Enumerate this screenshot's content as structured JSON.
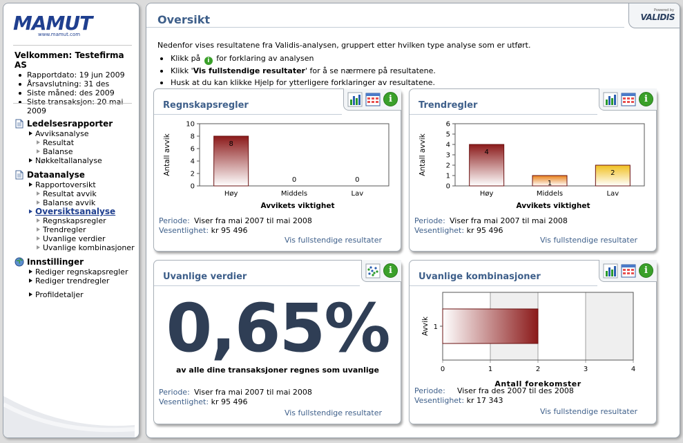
{
  "sidebar": {
    "logo": {
      "brand": "MAMUT",
      "sub": "www.mamut.com"
    },
    "welcome": {
      "title": "Velkommen: Testefirma AS",
      "items": [
        "Rapportdato: 19 jun 2009",
        "Årsavslutning: 31 des",
        "Siste måned: des 2009",
        "Siste transaksjon: 20 mai 2009"
      ]
    },
    "nav": {
      "reports": {
        "label": "Ledelsesrapporter",
        "items": [
          {
            "label": "Avviksanalyse"
          },
          {
            "label": "Resultat"
          },
          {
            "label": "Balanse"
          },
          {
            "label": "Nøkkeltallanalyse"
          }
        ]
      },
      "analysis": {
        "label": "Dataanalyse",
        "items": [
          {
            "label": "Rapportoversikt"
          },
          {
            "label": "Resultat avvik"
          },
          {
            "label": "Balanse avvik"
          },
          {
            "label": "Oversiktsanalyse"
          },
          {
            "label": "Regnskapsregler"
          },
          {
            "label": "Trendregler"
          },
          {
            "label": "Uvanlige verdier"
          },
          {
            "label": "Uvanlige kombinasjoner"
          }
        ]
      },
      "settings": {
        "label": "Innstillinger",
        "items": [
          {
            "label": "Rediger regnskapsregler"
          },
          {
            "label": "Rediger trendregler"
          },
          {
            "label": "Profildetaljer"
          }
        ]
      }
    }
  },
  "main": {
    "title": "Oversikt",
    "validis": {
      "powered": "Powered by",
      "brand": "VALIDIS"
    },
    "intro": "Nedenfor vises resultatene fra Validis-analysen, gruppert etter hvilken type analyse som er utført.",
    "bullets": {
      "b1_pre": "Klikk på",
      "b1_post": "for forklaring av analysen",
      "b2_pre": "Klikk '",
      "b2_bold": "Vis fullstendige resultater",
      "b2_post": "' for å se nærmere på resultatene.",
      "b3": "Husk at du kan klikke Hjelp for ytterligere forklaringer av resultatene."
    }
  },
  "panels": {
    "regnskap": {
      "title": "Regnskapsregler",
      "periode_label": "Periode:",
      "periode_value": "Viser fra mai 2007 til mai 2008",
      "vesentlighet_label": "Vesentlighet:",
      "vesentlighet_value": "kr 95 496",
      "link": "Vis fullstendige resultater"
    },
    "trend": {
      "title": "Trendregler",
      "periode_label": "Periode:",
      "periode_value": "Viser fra mai 2007 til mai 2008",
      "vesentlighet_label": "Vesentlighet:",
      "vesentlighet_value": "kr 95 496",
      "link": "Vis fullstendige resultater"
    },
    "uvanlige_verdier": {
      "title": "Uvanlige verdier",
      "value": "0,65%",
      "caption": "av alle dine transaksjoner regnes som uvanlige",
      "periode_label": "Periode:",
      "periode_value": "Viser fra mai 2007 til mai 2008",
      "vesentlighet_label": "Vesentlighet:",
      "vesentlighet_value": "kr 95 496",
      "link": "Vis fullstendige resultater"
    },
    "uvanlige_kombinasjoner": {
      "title": "Uvanlige kombinasjoner",
      "periode_label": "Periode:",
      "periode_value": "Viser fra des 2007 til des 2008",
      "vesentlighet_label": "Vesentlighet:",
      "vesentlighet_value": "kr 17 343",
      "link": "Vis fullstendige resultater"
    }
  },
  "chart_data": [
    {
      "type": "bar",
      "title": "",
      "categories": [
        "Høy",
        "Middels",
        "Lav"
      ],
      "values": [
        8,
        0,
        0
      ],
      "xlabel": "Avvikets viktighet",
      "ylabel": "Antall avvik",
      "ylim": [
        0,
        10
      ],
      "yticks": [
        0,
        2,
        4,
        6,
        8,
        10
      ],
      "colors": [
        "#8b1a1a",
        "#e8801a",
        "#f0c020"
      ],
      "data_labels": true,
      "grid": false
    },
    {
      "type": "bar",
      "title": "",
      "categories": [
        "Høy",
        "Middels",
        "Lav"
      ],
      "values": [
        4,
        1,
        2
      ],
      "xlabel": "Avvikets viktighet",
      "ylabel": "Antall avvik",
      "ylim": [
        0,
        6
      ],
      "yticks": [
        0,
        1,
        2,
        3,
        4,
        5,
        6
      ],
      "colors": [
        "#8b1a1a",
        "#e8801a",
        "#f0c020"
      ],
      "data_labels": true,
      "grid": false
    },
    {
      "type": "bar",
      "orientation": "horizontal",
      "title": "",
      "categories": [
        "1"
      ],
      "values": [
        2
      ],
      "xlabel": "Antall forekomster",
      "ylabel": "Avvik",
      "xlim": [
        0,
        4
      ],
      "xticks": [
        0,
        1,
        2,
        3,
        4
      ],
      "colors": [
        "#8b1a1a"
      ],
      "grid": true
    }
  ]
}
